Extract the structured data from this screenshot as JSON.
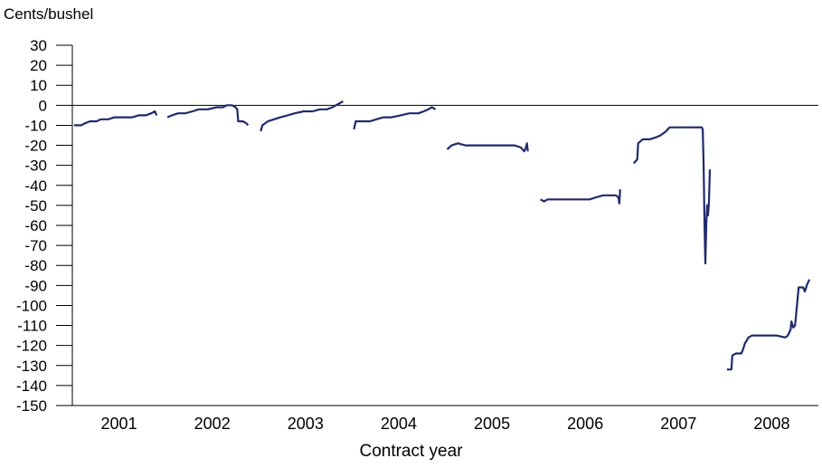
{
  "chart_data": {
    "type": "line",
    "ylabel": "Cents/bushel",
    "xlabel": "Contract year",
    "ylim": [
      -150,
      30
    ],
    "yticks": [
      30,
      20,
      10,
      0,
      -10,
      -20,
      -30,
      -40,
      -50,
      -60,
      -70,
      -80,
      -90,
      -100,
      -110,
      -120,
      -130,
      -140,
      -150
    ],
    "x_categories": [
      "2001",
      "2002",
      "2003",
      "2004",
      "2005",
      "2006",
      "2007",
      "2008"
    ],
    "zero_line": true,
    "grid": false,
    "series_color": "#1f2a6b",
    "segments": [
      {
        "contract": "2001",
        "points": [
          [
            0.0,
            -10
          ],
          [
            0.08,
            -10
          ],
          [
            0.12,
            -9
          ],
          [
            0.18,
            -8
          ],
          [
            0.25,
            -8
          ],
          [
            0.3,
            -7
          ],
          [
            0.38,
            -7
          ],
          [
            0.45,
            -6
          ],
          [
            0.55,
            -6
          ],
          [
            0.65,
            -6
          ],
          [
            0.72,
            -5
          ],
          [
            0.8,
            -5
          ],
          [
            0.86,
            -4
          ],
          [
            0.9,
            -3
          ],
          [
            0.92,
            -5
          ]
        ]
      },
      {
        "contract": "2002",
        "points": [
          [
            0.0,
            -6
          ],
          [
            0.05,
            -5
          ],
          [
            0.12,
            -4
          ],
          [
            0.2,
            -4
          ],
          [
            0.28,
            -3
          ],
          [
            0.35,
            -2
          ],
          [
            0.45,
            -2
          ],
          [
            0.55,
            -1
          ],
          [
            0.62,
            -1
          ],
          [
            0.66,
            0
          ],
          [
            0.72,
            0
          ],
          [
            0.76,
            -1
          ],
          [
            0.78,
            -2
          ],
          [
            0.79,
            -8
          ],
          [
            0.84,
            -8
          ],
          [
            0.88,
            -9
          ],
          [
            0.9,
            -10
          ]
        ]
      },
      {
        "contract": "2003",
        "points": [
          [
            0.0,
            -13
          ],
          [
            0.02,
            -10
          ],
          [
            0.08,
            -8
          ],
          [
            0.15,
            -7
          ],
          [
            0.22,
            -6
          ],
          [
            0.3,
            -5
          ],
          [
            0.38,
            -4
          ],
          [
            0.48,
            -3
          ],
          [
            0.58,
            -3
          ],
          [
            0.66,
            -2
          ],
          [
            0.74,
            -2
          ],
          [
            0.8,
            -1
          ],
          [
            0.84,
            0
          ],
          [
            0.88,
            1
          ],
          [
            0.92,
            2
          ]
        ]
      },
      {
        "contract": "2004",
        "points": [
          [
            0.0,
            -12
          ],
          [
            0.02,
            -8
          ],
          [
            0.1,
            -8
          ],
          [
            0.18,
            -8
          ],
          [
            0.25,
            -7
          ],
          [
            0.33,
            -6
          ],
          [
            0.42,
            -6
          ],
          [
            0.52,
            -5
          ],
          [
            0.62,
            -4
          ],
          [
            0.72,
            -4
          ],
          [
            0.78,
            -3
          ],
          [
            0.83,
            -2
          ],
          [
            0.87,
            -1
          ],
          [
            0.91,
            -2
          ]
        ]
      },
      {
        "contract": "2005",
        "points": [
          [
            0.0,
            -22
          ],
          [
            0.05,
            -20
          ],
          [
            0.12,
            -19
          ],
          [
            0.2,
            -20
          ],
          [
            0.3,
            -20
          ],
          [
            0.42,
            -20
          ],
          [
            0.55,
            -20
          ],
          [
            0.65,
            -20
          ],
          [
            0.75,
            -20
          ],
          [
            0.82,
            -21
          ],
          [
            0.86,
            -23
          ],
          [
            0.88,
            -21
          ],
          [
            0.89,
            -19
          ],
          [
            0.9,
            -23
          ]
        ]
      },
      {
        "contract": "2006",
        "points": [
          [
            0.0,
            -47
          ],
          [
            0.04,
            -48
          ],
          [
            0.08,
            -47
          ],
          [
            0.15,
            -47
          ],
          [
            0.25,
            -47
          ],
          [
            0.35,
            -47
          ],
          [
            0.45,
            -47
          ],
          [
            0.55,
            -47
          ],
          [
            0.62,
            -46
          ],
          [
            0.7,
            -45
          ],
          [
            0.78,
            -45
          ],
          [
            0.84,
            -45
          ],
          [
            0.87,
            -46
          ],
          [
            0.88,
            -49
          ],
          [
            0.89,
            -42
          ]
        ]
      },
      {
        "contract": "2007",
        "points": [
          [
            0.0,
            -29
          ],
          [
            0.04,
            -27
          ],
          [
            0.05,
            -19
          ],
          [
            0.1,
            -17
          ],
          [
            0.18,
            -17
          ],
          [
            0.25,
            -16
          ],
          [
            0.3,
            -15
          ],
          [
            0.36,
            -13
          ],
          [
            0.4,
            -11
          ],
          [
            0.48,
            -11
          ],
          [
            0.56,
            -11
          ],
          [
            0.64,
            -11
          ],
          [
            0.72,
            -11
          ],
          [
            0.76,
            -11
          ],
          [
            0.77,
            -12
          ],
          [
            0.78,
            -30
          ],
          [
            0.79,
            -60
          ],
          [
            0.8,
            -79
          ],
          [
            0.81,
            -60
          ],
          [
            0.82,
            -50
          ],
          [
            0.83,
            -55
          ],
          [
            0.84,
            -48
          ],
          [
            0.85,
            -32
          ]
        ]
      },
      {
        "contract": "2008",
        "points": [
          [
            0.0,
            -132
          ],
          [
            0.05,
            -132
          ],
          [
            0.06,
            -125
          ],
          [
            0.1,
            -124
          ],
          [
            0.16,
            -124
          ],
          [
            0.18,
            -122
          ],
          [
            0.2,
            -119
          ],
          [
            0.24,
            -116
          ],
          [
            0.28,
            -115
          ],
          [
            0.35,
            -115
          ],
          [
            0.45,
            -115
          ],
          [
            0.55,
            -115
          ],
          [
            0.65,
            -116
          ],
          [
            0.68,
            -115
          ],
          [
            0.71,
            -112
          ],
          [
            0.72,
            -108
          ],
          [
            0.74,
            -111
          ],
          [
            0.76,
            -110
          ],
          [
            0.8,
            -91
          ],
          [
            0.85,
            -91
          ],
          [
            0.87,
            -93
          ],
          [
            0.89,
            -90
          ],
          [
            0.92,
            -87
          ]
        ]
      }
    ]
  }
}
